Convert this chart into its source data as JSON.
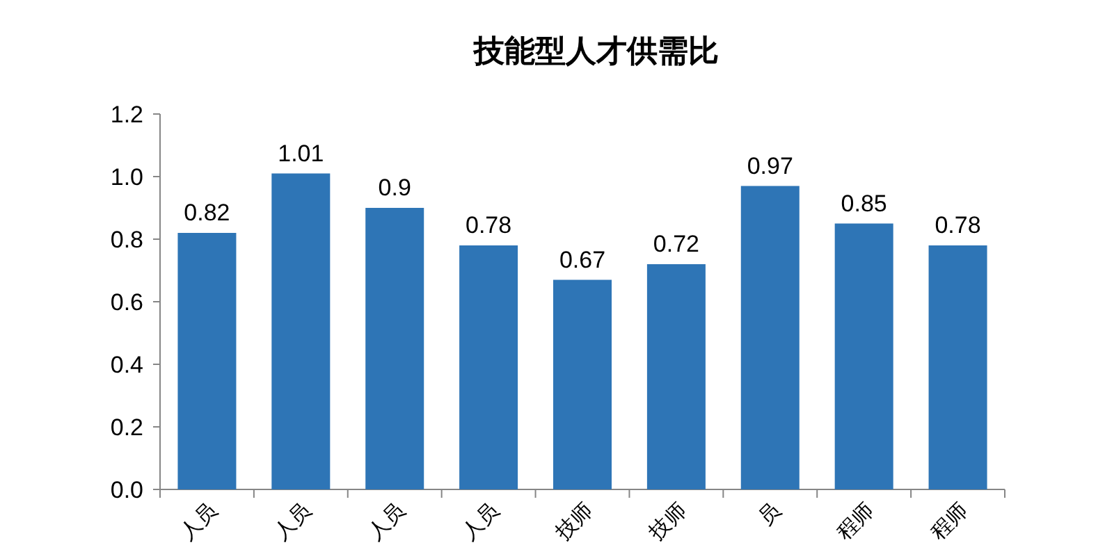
{
  "chart_data": {
    "type": "bar",
    "title": "技能型人才供需比",
    "categories": [
      "人员",
      "人员",
      "人员",
      "人员",
      "技师",
      "技师",
      "员",
      "程师",
      "程师"
    ],
    "values": [
      0.82,
      1.01,
      0.9,
      0.78,
      0.67,
      0.72,
      0.97,
      0.85,
      0.78
    ],
    "value_labels": [
      "0.82",
      "1.01",
      "0.9",
      "0.78",
      "0.67",
      "0.72",
      "0.97",
      "0.85",
      "0.78"
    ],
    "color": "#2e75b6",
    "ylim": [
      0,
      1.2
    ],
    "yticks": [
      {
        "value": 0,
        "label": "0.0"
      },
      {
        "value": 0.2,
        "label": "0.2"
      },
      {
        "value": 0.4,
        "label": "0.4"
      },
      {
        "value": 0.6,
        "label": "0.6"
      },
      {
        "value": 0.8,
        "label": "0.8"
      },
      {
        "value": 1,
        "label": "1.0"
      },
      {
        "value": 1.2,
        "label": "1.2"
      }
    ]
  }
}
